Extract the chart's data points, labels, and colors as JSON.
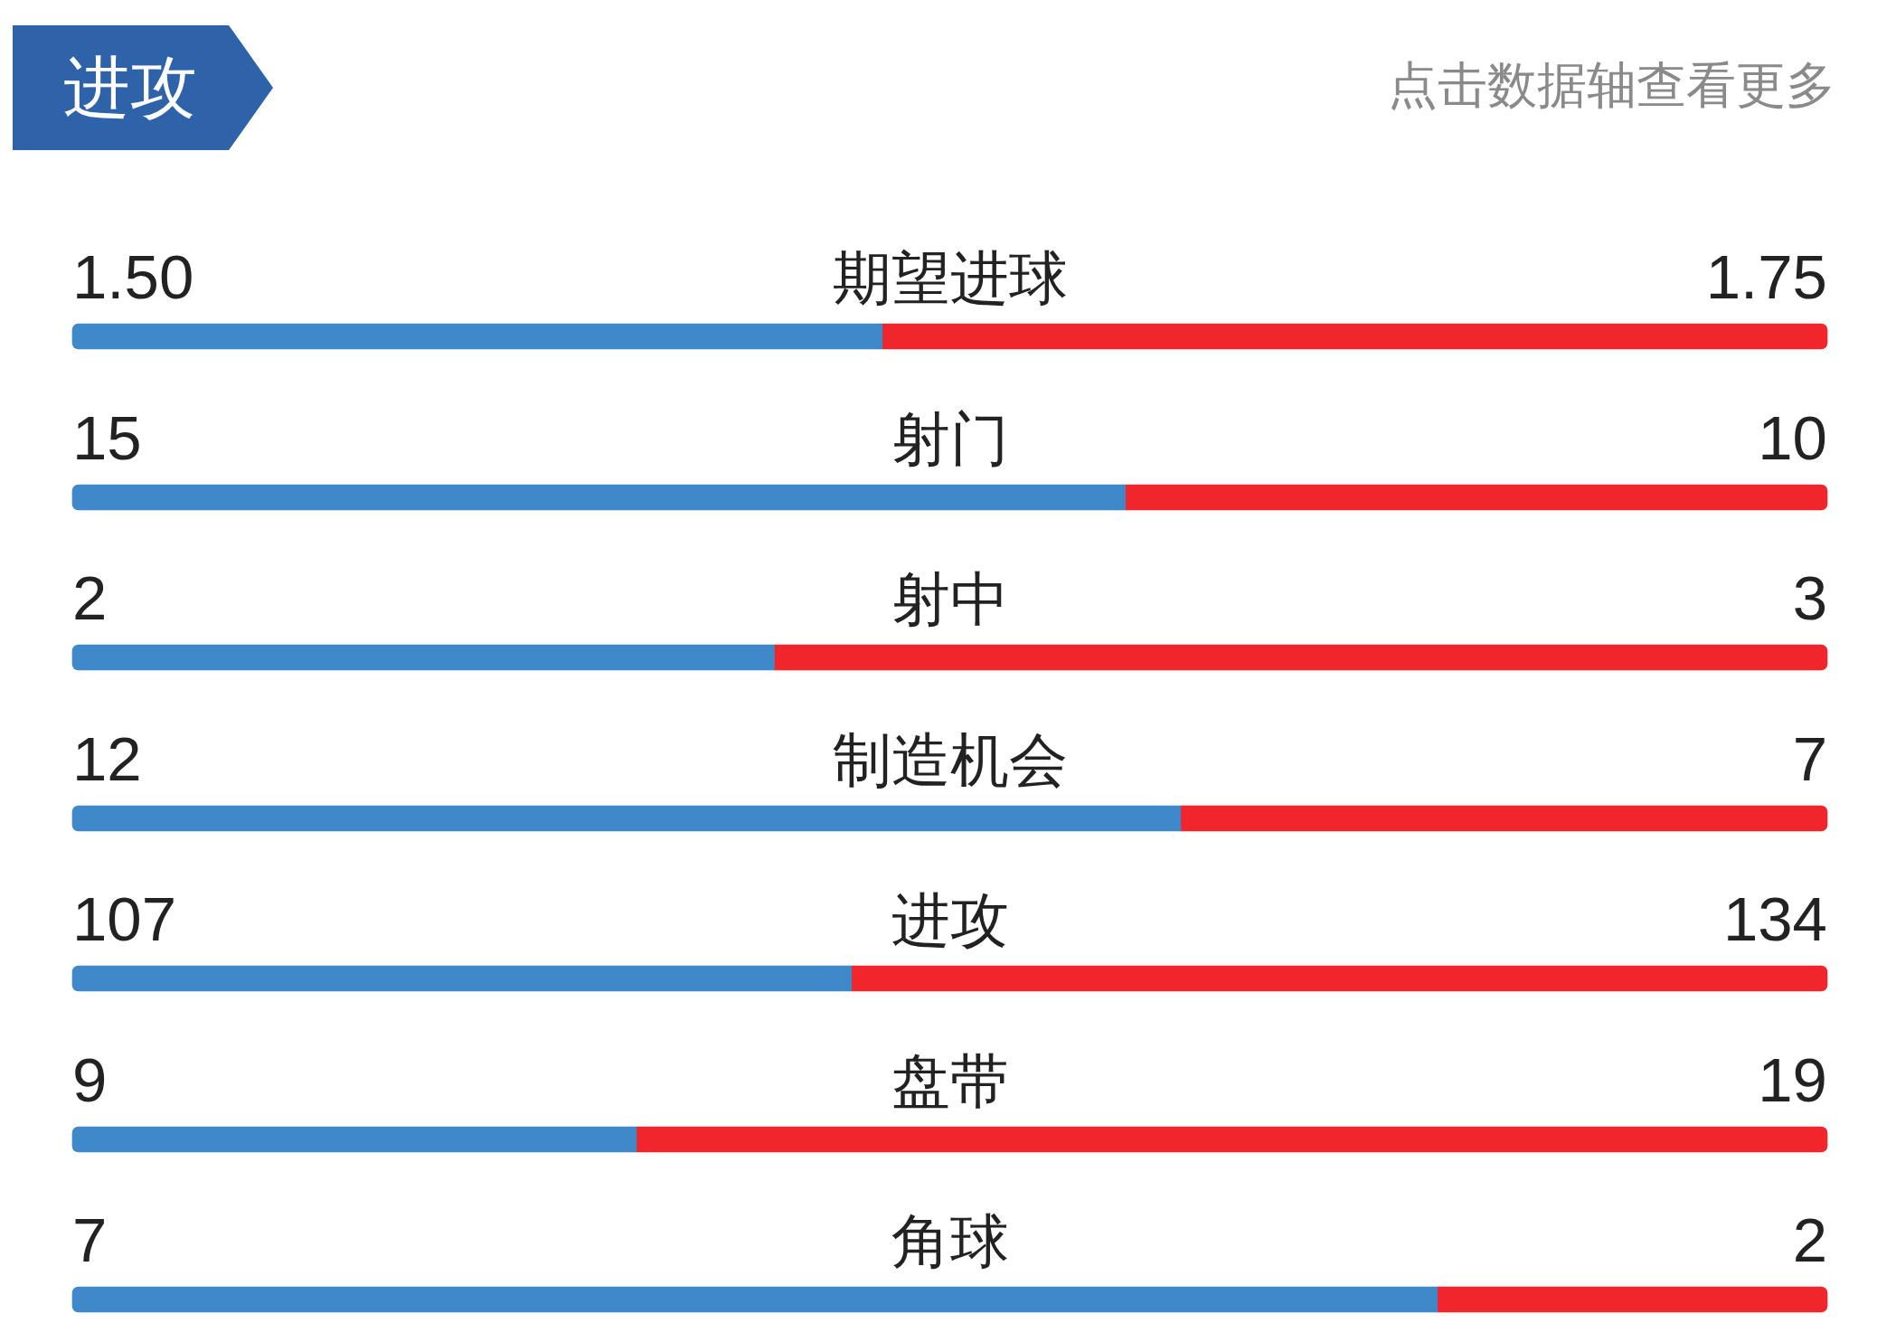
{
  "chart_data": [
    {
      "type": "bar",
      "orientation": "horizontal",
      "stacked": true,
      "title": "进攻",
      "annotations": [
        "点击数据轴查看更多"
      ],
      "tick_labels": "y",
      "categories": [
        "期望进球"
      ],
      "xlim": [
        0,
        3.25
      ],
      "series": [
        {
          "color": "#3f88c9",
          "values": [
            1.5
          ],
          "value_labels": [
            "1.50"
          ]
        },
        {
          "color": "#f0262c",
          "values": [
            1.75
          ],
          "value_labels": [
            "1.75"
          ]
        }
      ]
    },
    {
      "type": "bar",
      "orientation": "horizontal",
      "stacked": true,
      "tick_labels": "y",
      "categories": [
        "射门"
      ],
      "xlim": [
        0,
        25
      ],
      "series": [
        {
          "color": "#3f88c9",
          "values": [
            15
          ],
          "value_labels": [
            "15"
          ]
        },
        {
          "color": "#f0262c",
          "values": [
            10
          ],
          "value_labels": [
            "10"
          ]
        }
      ]
    },
    {
      "type": "bar",
      "orientation": "horizontal",
      "stacked": true,
      "tick_labels": "y",
      "categories": [
        "射中"
      ],
      "xlim": [
        0,
        5
      ],
      "series": [
        {
          "color": "#3f88c9",
          "values": [
            2
          ],
          "value_labels": [
            "2"
          ]
        },
        {
          "color": "#f0262c",
          "values": [
            3
          ],
          "value_labels": [
            "3"
          ]
        }
      ]
    },
    {
      "type": "bar",
      "orientation": "horizontal",
      "stacked": true,
      "tick_labels": "y",
      "categories": [
        "制造机会"
      ],
      "xlim": [
        0,
        19
      ],
      "series": [
        {
          "color": "#3f88c9",
          "values": [
            12
          ],
          "value_labels": [
            "12"
          ]
        },
        {
          "color": "#f0262c",
          "values": [
            7
          ],
          "value_labels": [
            "7"
          ]
        }
      ]
    },
    {
      "type": "bar",
      "orientation": "horizontal",
      "stacked": true,
      "tick_labels": "y",
      "categories": [
        "进攻"
      ],
      "xlim": [
        0,
        241
      ],
      "series": [
        {
          "color": "#3f88c9",
          "values": [
            107
          ],
          "value_labels": [
            "107"
          ]
        },
        {
          "color": "#f0262c",
          "values": [
            134
          ],
          "value_labels": [
            "134"
          ]
        }
      ]
    },
    {
      "type": "bar",
      "orientation": "horizontal",
      "stacked": true,
      "tick_labels": "y",
      "categories": [
        "盘带"
      ],
      "xlim": [
        0,
        28
      ],
      "series": [
        {
          "color": "#3f88c9",
          "values": [
            9
          ],
          "value_labels": [
            "9"
          ]
        },
        {
          "color": "#f0262c",
          "values": [
            19
          ],
          "value_labels": [
            "19"
          ]
        }
      ]
    },
    {
      "type": "bar",
      "orientation": "horizontal",
      "stacked": true,
      "tick_labels": "y",
      "categories": [
        "角球"
      ],
      "xlim": [
        0,
        9
      ],
      "series": [
        {
          "color": "#3f88c9",
          "values": [
            7
          ],
          "value_labels": [
            "7"
          ]
        },
        {
          "color": "#f0262c",
          "values": [
            2
          ],
          "value_labels": [
            "2"
          ]
        }
      ]
    }
  ]
}
